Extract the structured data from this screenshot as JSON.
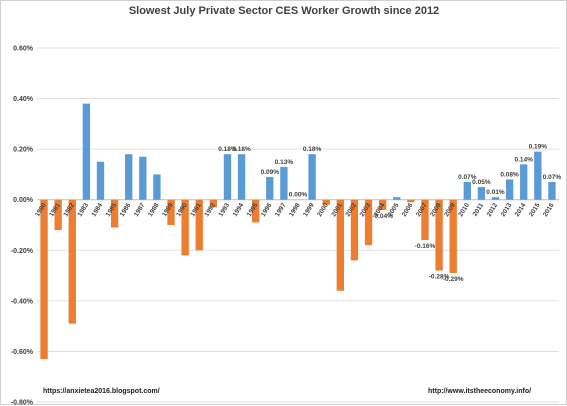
{
  "chart_data": {
    "type": "bar",
    "title": "Slowest July Private Sector CES Worker Growth since 2012",
    "xlabel": "",
    "ylabel": "",
    "ylim": [
      -0.8,
      0.6
    ],
    "yticks": [
      "0.60%",
      "0.40%",
      "0.20%",
      "0.00%",
      "-0.20%",
      "-0.40%",
      "-0.60%",
      "-0.80%"
    ],
    "ytick_values": [
      0.6,
      0.4,
      0.2,
      0.0,
      -0.2,
      -0.4,
      -0.6,
      -0.8
    ],
    "grid": true,
    "positive_color": "#5b9bd5",
    "negative_color": "#ed7d31",
    "categories": [
      "1980",
      "1981",
      "1982",
      "1983",
      "1984",
      "1985",
      "1986",
      "1987",
      "1988",
      "1989",
      "1990",
      "1991",
      "1992",
      "1993",
      "1994",
      "1995",
      "1996",
      "1997",
      "1998",
      "1999",
      "2000",
      "2001",
      "2002",
      "2003",
      "2004",
      "2005",
      "2006",
      "2007",
      "2008",
      "2009",
      "2010",
      "2011",
      "2012",
      "2013",
      "2014",
      "2015",
      "2016"
    ],
    "values": [
      -0.63,
      -0.12,
      -0.49,
      0.38,
      0.15,
      -0.11,
      0.18,
      0.17,
      0.1,
      -0.1,
      -0.22,
      -0.2,
      -0.03,
      0.18,
      0.18,
      -0.09,
      0.09,
      0.13,
      0.0,
      0.18,
      -0.02,
      -0.36,
      -0.24,
      -0.18,
      -0.04,
      0.01,
      -0.01,
      -0.16,
      -0.28,
      -0.29,
      0.07,
      0.05,
      0.01,
      0.08,
      0.14,
      0.19,
      0.07
    ],
    "data_labels": [
      "",
      "",
      "",
      "",
      "",
      "",
      "",
      "",
      "",
      "",
      "",
      "",
      "",
      "0.18%",
      "0.18%",
      "",
      "0.09%",
      "0.13%",
      "0.00%",
      "0.18%",
      "",
      "",
      "",
      "",
      "-0.04%",
      "",
      "",
      "-0.16%",
      "-0.28%",
      "-0.29%",
      "0.07%",
      "0.05%",
      "0.01%",
      "0.08%",
      "0.14%",
      "0.19%",
      "0.07%"
    ]
  },
  "footer": {
    "left": "https://anxietea2016.blogspot.com/",
    "right": "http://www.itstheeconomy.info/"
  }
}
